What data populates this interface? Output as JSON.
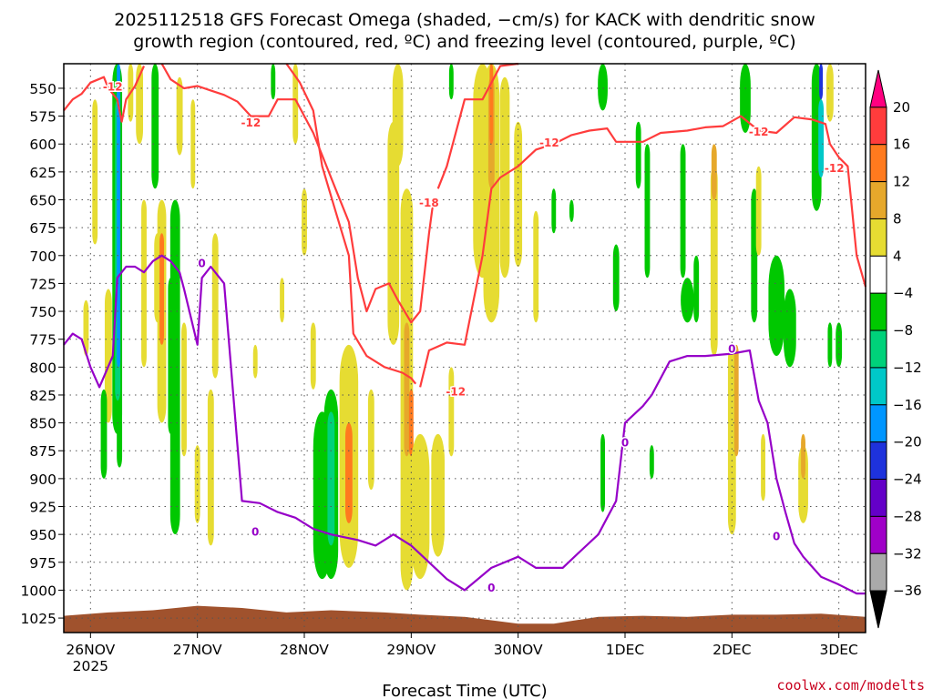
{
  "chart_data": {
    "type": "heatmap",
    "title_line1": "2025112518 GFS Forecast Omega (shaded, −cm/s) for KACK with dendritic snow",
    "title_line2": "growth region (contoured, red, ºC) and freezing level (contoured, purple, ºC)",
    "xlabel": "Forecast Time (UTC)",
    "credit": "coolwx.com/modelts",
    "x_ticks": [
      {
        "label": "26NOV",
        "sub": "2025",
        "t": 0
      },
      {
        "label": "27NOV",
        "sub": "",
        "t": 24
      },
      {
        "label": "28NOV",
        "sub": "",
        "t": 48
      },
      {
        "label": "29NOV",
        "sub": "",
        "t": 72
      },
      {
        "label": "30NOV",
        "sub": "",
        "t": 96
      },
      {
        "label": "1DEC",
        "sub": "",
        "t": 120
      },
      {
        "label": "2DEC",
        "sub": "",
        "t": 144
      },
      {
        "label": "3DEC",
        "sub": "",
        "t": 168
      }
    ],
    "x_range_hours": [
      -6,
      174
    ],
    "y_ticks": [
      "550",
      "575",
      "600",
      "625",
      "650",
      "675",
      "700",
      "725",
      "750",
      "775",
      "800",
      "825",
      "850",
      "875",
      "900",
      "925",
      "950",
      "975",
      "1000",
      "1025"
    ],
    "y_range_hpa": [
      528,
      1038
    ],
    "colorbar": {
      "labels": [
        "20",
        "16",
        "12",
        "8",
        "4",
        "−4",
        "−8",
        "−12",
        "−16",
        "−20",
        "−24",
        "−28",
        "−32",
        "−36"
      ],
      "colors": [
        "#ff0080",
        "#ff3c3c",
        "#ff7a1e",
        "#e6a82b",
        "#e6dc32",
        "#ffffff",
        "#00c800",
        "#00d27a",
        "#00c8c8",
        "#0096ff",
        "#1e32dc",
        "#6400c8",
        "#a000c8",
        "#aaaaaa",
        "#000000"
      ]
    },
    "series": [
      {
        "name": "dendritic growth -12C",
        "color": "#ff3c3c",
        "labels": [
          "-12",
          "-12",
          "-18",
          "-12",
          "-12",
          "-12",
          "-12"
        ]
      },
      {
        "name": "freezing level 0C",
        "color": "#9600c8",
        "labels": [
          "0",
          "0",
          "0",
          "0",
          "0",
          "0"
        ]
      }
    ],
    "colors": {
      "terrain": "#a0522d",
      "frame": "#000000",
      "grid": "#555555"
    }
  }
}
